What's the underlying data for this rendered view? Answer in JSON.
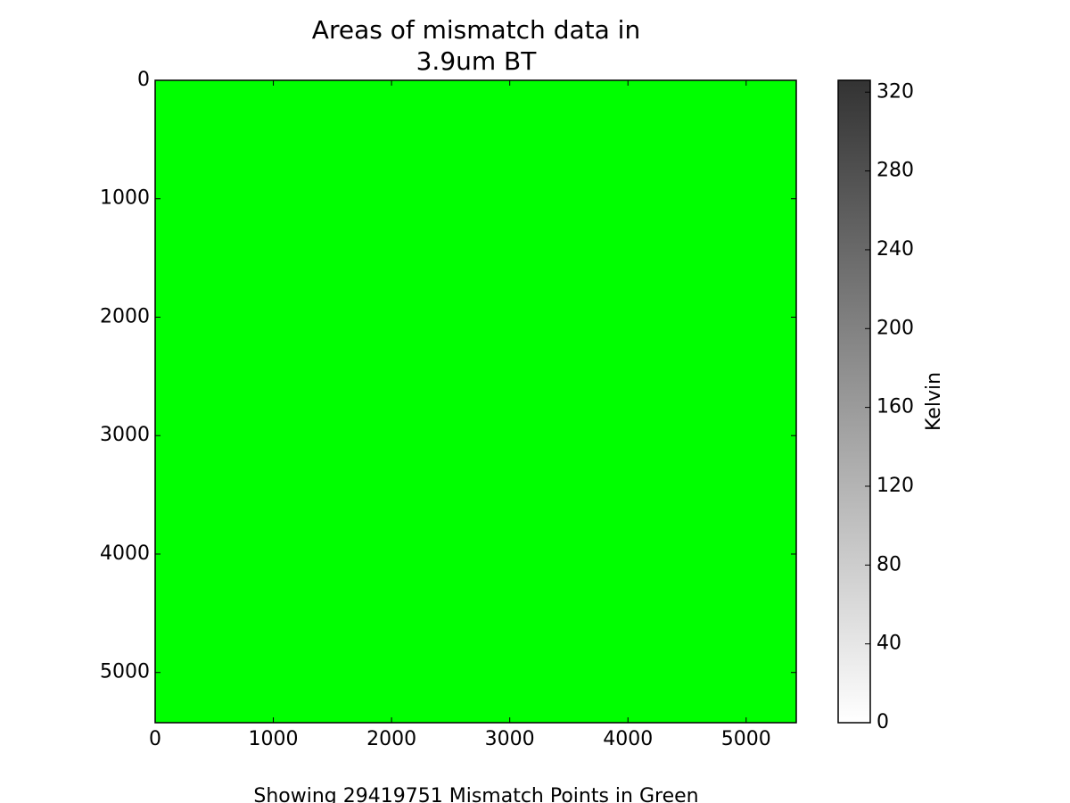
{
  "chart_data": {
    "type": "image",
    "title": [
      "Areas of mismatch data in",
      "3.9um BT"
    ],
    "xlabel": "Showing 29419751 Mismatch Points in Green",
    "mask_color": "#00ff00",
    "xlim": [
      0,
      5424
    ],
    "ylim": [
      5424,
      0
    ],
    "xticks": [
      0,
      1000,
      2000,
      3000,
      4000,
      5000
    ],
    "yticks": [
      0,
      1000,
      2000,
      3000,
      4000,
      5000
    ],
    "colorbar": {
      "label": "Kelvin",
      "lim": [
        0,
        326
      ],
      "ticks": [
        0,
        40,
        80,
        120,
        160,
        200,
        240,
        280,
        320
      ],
      "colors": [
        "#ffffff",
        "#333333"
      ]
    }
  }
}
